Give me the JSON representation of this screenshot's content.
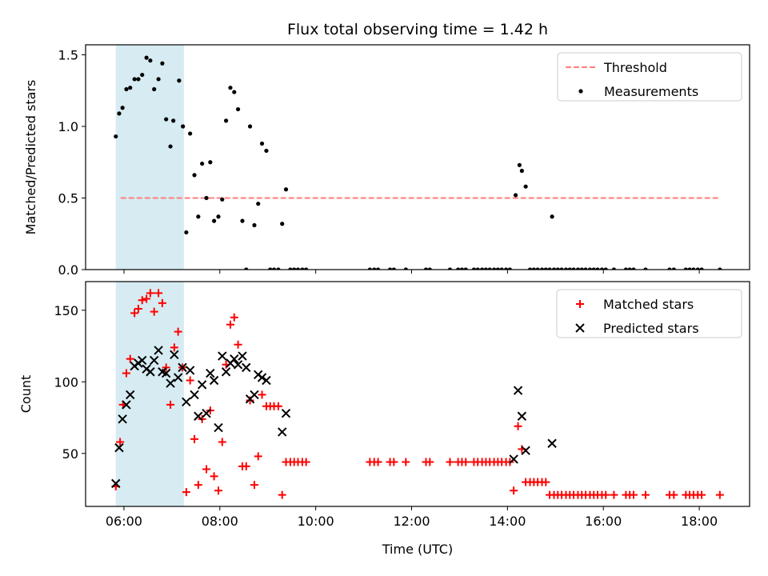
{
  "title": "Flux total observing time = 1.42 h",
  "colors": {
    "threshold": "#ff7f7f",
    "measurement": "#000000",
    "matched": "#ff0000",
    "predicted": "#000000",
    "shade": "#add8e6"
  },
  "chart_data": [
    {
      "type": "scatter",
      "ylabel": "Matched/Predicted stars",
      "ylim": [
        0,
        1.57
      ],
      "xlim": [
        5.2,
        19.05
      ],
      "yticks": [
        0.0,
        0.5,
        1.0,
        1.5
      ],
      "ytick_labels": [
        "0.0",
        "0.5",
        "1.0",
        "1.5"
      ],
      "legend_position": "top-right",
      "shaded_span": [
        5.83,
        7.25
      ],
      "threshold": {
        "name": "Threshold",
        "y": 0.5,
        "x_range": [
          5.93,
          18.43
        ]
      },
      "series": [
        {
          "name": "Measurements",
          "points": [
            [
              5.83,
              0.93
            ],
            [
              5.9,
              1.09
            ],
            [
              5.97,
              1.13
            ],
            [
              6.05,
              1.26
            ],
            [
              6.13,
              1.27
            ],
            [
              6.22,
              1.33
            ],
            [
              6.3,
              1.33
            ],
            [
              6.38,
              1.36
            ],
            [
              6.47,
              1.48
            ],
            [
              6.55,
              1.46
            ],
            [
              6.63,
              1.26
            ],
            [
              6.72,
              1.33
            ],
            [
              6.8,
              1.44
            ],
            [
              6.88,
              1.05
            ],
            [
              6.97,
              0.86
            ],
            [
              7.03,
              1.04
            ],
            [
              7.15,
              1.32
            ],
            [
              7.23,
              1.0
            ],
            [
              7.3,
              0.26
            ],
            [
              7.38,
              0.95
            ],
            [
              7.47,
              0.66
            ],
            [
              7.55,
              0.37
            ],
            [
              7.63,
              0.74
            ],
            [
              7.72,
              0.5
            ],
            [
              7.8,
              0.75
            ],
            [
              7.88,
              0.34
            ],
            [
              7.97,
              0.37
            ],
            [
              8.05,
              0.49
            ],
            [
              8.13,
              1.04
            ],
            [
              8.22,
              1.27
            ],
            [
              8.3,
              1.24
            ],
            [
              8.38,
              1.12
            ],
            [
              8.47,
              0.34
            ],
            [
              8.55,
              0.0
            ],
            [
              8.63,
              1.0
            ],
            [
              8.72,
              0.31
            ],
            [
              8.8,
              0.46
            ],
            [
              8.88,
              0.88
            ],
            [
              8.97,
              0.83
            ],
            [
              9.05,
              0.0
            ],
            [
              9.13,
              0.0
            ],
            [
              9.22,
              0.0
            ],
            [
              9.3,
              0.32
            ],
            [
              9.38,
              0.56
            ],
            [
              9.47,
              0.0
            ],
            [
              9.55,
              0.0
            ],
            [
              9.63,
              0.0
            ],
            [
              9.72,
              0.0
            ],
            [
              9.8,
              0.0
            ],
            [
              11.13,
              0.0
            ],
            [
              11.22,
              0.0
            ],
            [
              11.3,
              0.0
            ],
            [
              11.55,
              0.0
            ],
            [
              11.63,
              0.0
            ],
            [
              11.88,
              0.0
            ],
            [
              12.3,
              0.0
            ],
            [
              12.38,
              0.0
            ],
            [
              12.8,
              0.0
            ],
            [
              12.97,
              0.0
            ],
            [
              13.05,
              0.0
            ],
            [
              13.13,
              0.0
            ],
            [
              13.3,
              0.0
            ],
            [
              13.38,
              0.0
            ],
            [
              13.47,
              0.0
            ],
            [
              13.55,
              0.0
            ],
            [
              13.63,
              0.0
            ],
            [
              13.72,
              0.0
            ],
            [
              13.8,
              0.0
            ],
            [
              13.88,
              0.0
            ],
            [
              13.97,
              0.0
            ],
            [
              14.05,
              0.0
            ],
            [
              14.17,
              0.52
            ],
            [
              14.25,
              0.73
            ],
            [
              14.3,
              0.69
            ],
            [
              14.38,
              0.58
            ],
            [
              14.47,
              0.0
            ],
            [
              14.55,
              0.0
            ],
            [
              14.63,
              0.0
            ],
            [
              14.72,
              0.0
            ],
            [
              14.8,
              0.0
            ],
            [
              14.88,
              0.0
            ],
            [
              14.93,
              0.37
            ],
            [
              14.97,
              0.0
            ],
            [
              15.05,
              0.0
            ],
            [
              15.13,
              0.0
            ],
            [
              15.22,
              0.0
            ],
            [
              15.3,
              0.0
            ],
            [
              15.38,
              0.0
            ],
            [
              15.47,
              0.0
            ],
            [
              15.55,
              0.0
            ],
            [
              15.63,
              0.0
            ],
            [
              15.72,
              0.0
            ],
            [
              15.8,
              0.0
            ],
            [
              15.88,
              0.0
            ],
            [
              15.97,
              0.0
            ],
            [
              16.05,
              0.0
            ],
            [
              16.22,
              0.0
            ],
            [
              16.47,
              0.0
            ],
            [
              16.55,
              0.0
            ],
            [
              16.63,
              0.0
            ],
            [
              16.88,
              0.0
            ],
            [
              17.38,
              0.0
            ],
            [
              17.47,
              0.0
            ],
            [
              17.72,
              0.0
            ],
            [
              17.8,
              0.0
            ],
            [
              17.88,
              0.0
            ],
            [
              17.97,
              0.0
            ],
            [
              18.05,
              0.0
            ],
            [
              18.43,
              0.0
            ]
          ]
        }
      ]
    },
    {
      "type": "scatter",
      "xlabel": "Time (UTC)",
      "ylabel": "Count",
      "ylim": [
        13,
        170
      ],
      "xlim": [
        5.2,
        19.05
      ],
      "yticks": [
        50,
        100,
        150
      ],
      "ytick_labels": [
        "50",
        "100",
        "150"
      ],
      "xticks": [
        6,
        8,
        10,
        12,
        14,
        16,
        18
      ],
      "xtick_labels": [
        "06:00",
        "08:00",
        "10:00",
        "12:00",
        "14:00",
        "16:00",
        "18:00"
      ],
      "legend_position": "top-right",
      "shaded_span": [
        5.83,
        7.25
      ],
      "series": [
        {
          "name": "Matched stars",
          "marker": "plus",
          "points": [
            [
              5.83,
              27
            ],
            [
              5.92,
              58
            ],
            [
              5.98,
              84
            ],
            [
              6.05,
              106
            ],
            [
              6.13,
              116
            ],
            [
              6.22,
              148
            ],
            [
              6.3,
              151
            ],
            [
              6.38,
              157
            ],
            [
              6.47,
              158
            ],
            [
              6.55,
              162
            ],
            [
              6.63,
              149
            ],
            [
              6.72,
              162
            ],
            [
              6.8,
              155
            ],
            [
              6.88,
              110
            ],
            [
              6.97,
              84
            ],
            [
              7.05,
              124
            ],
            [
              7.13,
              135
            ],
            [
              7.22,
              110
            ],
            [
              7.3,
              23
            ],
            [
              7.38,
              101
            ],
            [
              7.47,
              60
            ],
            [
              7.55,
              28
            ],
            [
              7.63,
              74
            ],
            [
              7.72,
              39
            ],
            [
              7.8,
              80
            ],
            [
              7.88,
              34
            ],
            [
              7.97,
              24
            ],
            [
              8.05,
              58
            ],
            [
              8.13,
              112
            ],
            [
              8.22,
              140
            ],
            [
              8.3,
              145
            ],
            [
              8.38,
              126
            ],
            [
              8.47,
              41
            ],
            [
              8.55,
              41
            ],
            [
              8.63,
              87
            ],
            [
              8.72,
              28
            ],
            [
              8.8,
              48
            ],
            [
              8.88,
              91
            ],
            [
              8.97,
              83
            ],
            [
              9.05,
              83
            ],
            [
              9.13,
              83
            ],
            [
              9.22,
              83
            ],
            [
              9.3,
              21
            ],
            [
              9.38,
              44
            ],
            [
              9.47,
              44
            ],
            [
              9.55,
              44
            ],
            [
              9.63,
              44
            ],
            [
              9.72,
              44
            ],
            [
              9.8,
              44
            ],
            [
              11.13,
              44
            ],
            [
              11.22,
              44
            ],
            [
              11.3,
              44
            ],
            [
              11.55,
              44
            ],
            [
              11.63,
              44
            ],
            [
              11.88,
              44
            ],
            [
              12.3,
              44
            ],
            [
              12.38,
              44
            ],
            [
              12.8,
              44
            ],
            [
              12.97,
              44
            ],
            [
              13.05,
              44
            ],
            [
              13.13,
              44
            ],
            [
              13.3,
              44
            ],
            [
              13.38,
              44
            ],
            [
              13.47,
              44
            ],
            [
              13.55,
              44
            ],
            [
              13.63,
              44
            ],
            [
              13.72,
              44
            ],
            [
              13.8,
              44
            ],
            [
              13.88,
              44
            ],
            [
              13.97,
              44
            ],
            [
              14.05,
              44
            ],
            [
              14.13,
              24
            ],
            [
              14.22,
              69
            ],
            [
              14.3,
              53
            ],
            [
              14.38,
              30
            ],
            [
              14.47,
              30
            ],
            [
              14.55,
              30
            ],
            [
              14.63,
              30
            ],
            [
              14.72,
              30
            ],
            [
              14.8,
              30
            ],
            [
              14.88,
              21
            ],
            [
              14.97,
              21
            ],
            [
              15.05,
              21
            ],
            [
              15.13,
              21
            ],
            [
              15.22,
              21
            ],
            [
              15.3,
              21
            ],
            [
              15.38,
              21
            ],
            [
              15.47,
              21
            ],
            [
              15.55,
              21
            ],
            [
              15.63,
              21
            ],
            [
              15.72,
              21
            ],
            [
              15.8,
              21
            ],
            [
              15.88,
              21
            ],
            [
              15.97,
              21
            ],
            [
              16.05,
              21
            ],
            [
              16.22,
              21
            ],
            [
              16.47,
              21
            ],
            [
              16.55,
              21
            ],
            [
              16.63,
              21
            ],
            [
              16.88,
              21
            ],
            [
              17.38,
              21
            ],
            [
              17.47,
              21
            ],
            [
              17.72,
              21
            ],
            [
              17.8,
              21
            ],
            [
              17.88,
              21
            ],
            [
              17.97,
              21
            ],
            [
              18.05,
              21
            ],
            [
              18.43,
              21
            ]
          ]
        },
        {
          "name": "Predicted stars",
          "marker": "x",
          "points": [
            [
              5.83,
              29
            ],
            [
              5.9,
              54
            ],
            [
              5.97,
              74
            ],
            [
              6.05,
              84
            ],
            [
              6.13,
              91
            ],
            [
              6.22,
              111
            ],
            [
              6.3,
              113
            ],
            [
              6.38,
              115
            ],
            [
              6.47,
              109
            ],
            [
              6.55,
              107
            ],
            [
              6.63,
              115
            ],
            [
              6.72,
              122
            ],
            [
              6.8,
              107
            ],
            [
              6.88,
              106
            ],
            [
              6.97,
              99
            ],
            [
              7.05,
              119
            ],
            [
              7.13,
              103
            ],
            [
              7.22,
              110
            ],
            [
              7.3,
              86
            ],
            [
              7.38,
              108
            ],
            [
              7.47,
              91
            ],
            [
              7.55,
              76
            ],
            [
              7.63,
              98
            ],
            [
              7.72,
              78
            ],
            [
              7.8,
              106
            ],
            [
              7.88,
              101
            ],
            [
              7.97,
              68
            ],
            [
              8.05,
              118
            ],
            [
              8.13,
              107
            ],
            [
              8.22,
              113
            ],
            [
              8.3,
              116
            ],
            [
              8.38,
              112
            ],
            [
              8.47,
              118
            ],
            [
              8.55,
              110
            ],
            [
              8.63,
              88
            ],
            [
              8.72,
              91
            ],
            [
              8.8,
              105
            ],
            [
              8.88,
              103
            ],
            [
              8.97,
              101
            ],
            [
              9.3,
              65
            ],
            [
              9.38,
              78
            ],
            [
              14.13,
              46
            ],
            [
              14.22,
              94
            ],
            [
              14.3,
              76
            ],
            [
              14.38,
              52
            ],
            [
              14.93,
              57
            ]
          ]
        }
      ]
    }
  ]
}
